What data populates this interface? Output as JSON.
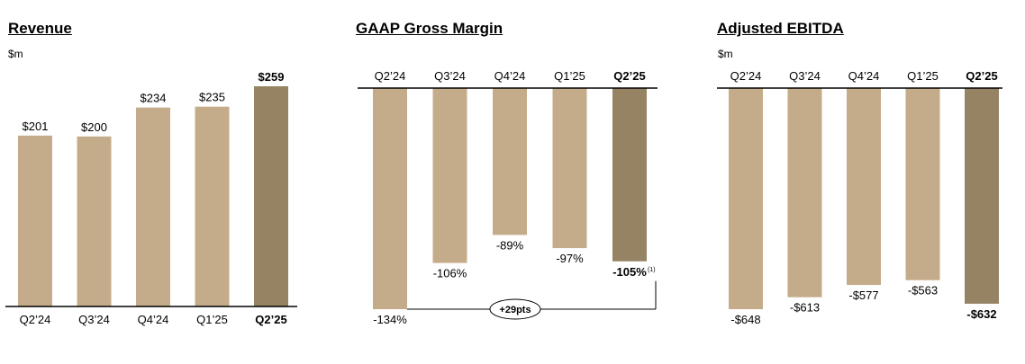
{
  "colors": {
    "bar": "#c4ac8a",
    "highlight": "#958364",
    "axis": "#000000"
  },
  "chart_data": [
    {
      "type": "bar",
      "title": "Revenue",
      "unit": "$m",
      "categories": [
        "Q2’24",
        "Q3’24",
        "Q4’24",
        "Q1’25",
        "Q2’25"
      ],
      "values": [
        201,
        200,
        234,
        235,
        259
      ],
      "labels": [
        "$201",
        "$200",
        "$234",
        "$235",
        "$259"
      ],
      "highlight_index": 4
    },
    {
      "type": "bar",
      "title": "GAAP Gross Margin",
      "unit": "",
      "categories": [
        "Q2’24",
        "Q3’24",
        "Q4’24",
        "Q1’25",
        "Q2’25"
      ],
      "values": [
        -134,
        -106,
        -89,
        -97,
        -105
      ],
      "labels": [
        "-134%",
        "-106%",
        "-89%",
        "-97%",
        "-105%"
      ],
      "highlight_index": 4,
      "footnote_marker": "(1)",
      "annotation": "+29pts"
    },
    {
      "type": "bar",
      "title": "Adjusted EBITDA",
      "unit": "$m",
      "categories": [
        "Q2’24",
        "Q3’24",
        "Q4’24",
        "Q1’25",
        "Q2’25"
      ],
      "values": [
        -648,
        -613,
        -577,
        -563,
        -632
      ],
      "labels": [
        "-$648",
        "-$613",
        "-$577",
        "-$563",
        "-$632"
      ],
      "highlight_index": 4
    }
  ]
}
